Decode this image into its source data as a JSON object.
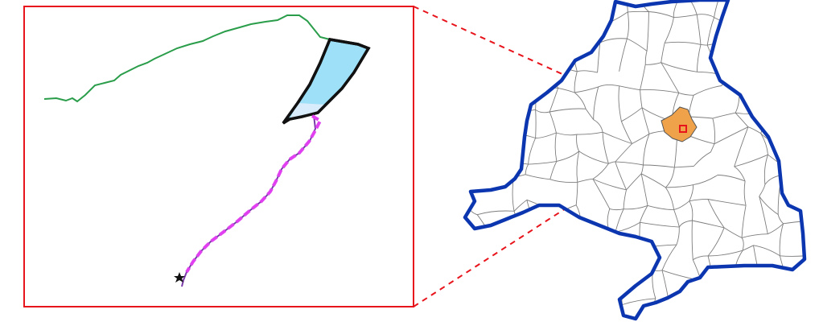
{
  "colors": {
    "background": "#ffffff",
    "inset_frame": "#e8141c",
    "connector": "#e8141c",
    "river": "#2a9d4a",
    "water_body": "#9ee0f8",
    "water_body_lower": "#d8ecfb",
    "water_outline": "#111111",
    "route": "#e040f0",
    "route_base": "#7a3aa8",
    "outlet_marker": "#111111",
    "region_border": "#0b36b0",
    "municipal_borders": "#7d7d7d",
    "highlighted_area": "#f0a24a",
    "highlighted_outline": "#555555"
  },
  "icons": {
    "outlet_marker": "star-icon"
  }
}
